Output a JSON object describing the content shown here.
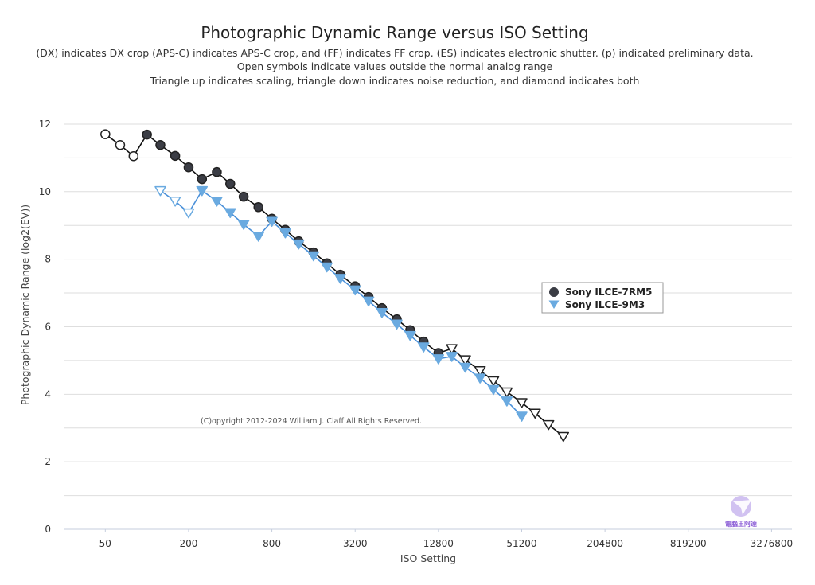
{
  "chart_data": {
    "type": "line",
    "title": "Photographic Dynamic Range versus ISO Setting",
    "subtitle": [
      "(DX) indicates DX crop (APS-C) indicates APS-C crop, and (FF) indicates FF crop. (ES) indicates electronic shutter. (p) indicated preliminary data.",
      "Open symbols indicate values outside the normal analog range",
      "Triangle up indicates scaling, triangle down indicates noise reduction, and diamond indicates both"
    ],
    "xlabel": "ISO Setting",
    "ylabel": "Photographic Dynamic Range (log2(EV))",
    "x_scale": "log2",
    "xlim": [
      25,
      4600000
    ],
    "ylim": [
      0,
      12.8
    ],
    "x_ticks": [
      "50",
      "200",
      "800",
      "3200",
      "12800",
      "51200",
      "204800",
      "819200",
      "3276800"
    ],
    "x_tick_values": [
      50,
      200,
      800,
      3200,
      12800,
      51200,
      204800,
      819200,
      3276800
    ],
    "y_ticks": [
      0,
      2,
      4,
      6,
      8,
      10,
      12
    ],
    "grid": true,
    "legend_position": "right",
    "copyright": "(C)opyright 2012-2024 William J. Claff All Rights Reserved.",
    "series": [
      {
        "name": "Sony ILCE-7RM5",
        "color": "#3b3d45",
        "points": [
          {
            "x": 50,
            "y": 11.7,
            "m": "circle-open"
          },
          {
            "x": 64,
            "y": 11.38,
            "m": "circle-open"
          },
          {
            "x": 80,
            "y": 11.05,
            "m": "circle-open"
          },
          {
            "x": 100,
            "y": 11.69,
            "m": "circle"
          },
          {
            "x": 125,
            "y": 11.38,
            "m": "circle"
          },
          {
            "x": 160,
            "y": 11.06,
            "m": "circle"
          },
          {
            "x": 200,
            "y": 10.72,
            "m": "circle"
          },
          {
            "x": 250,
            "y": 10.37,
            "m": "circle"
          },
          {
            "x": 320,
            "y": 10.58,
            "m": "circle"
          },
          {
            "x": 400,
            "y": 10.23,
            "m": "circle"
          },
          {
            "x": 500,
            "y": 9.85,
            "m": "circle"
          },
          {
            "x": 640,
            "y": 9.54,
            "m": "circle"
          },
          {
            "x": 800,
            "y": 9.2,
            "m": "circle"
          },
          {
            "x": 1000,
            "y": 8.87,
            "m": "circle"
          },
          {
            "x": 1250,
            "y": 8.53,
            "m": "circle"
          },
          {
            "x": 1600,
            "y": 8.2,
            "m": "circle"
          },
          {
            "x": 2000,
            "y": 7.88,
            "m": "circle"
          },
          {
            "x": 2500,
            "y": 7.54,
            "m": "circle"
          },
          {
            "x": 3200,
            "y": 7.2,
            "m": "circle"
          },
          {
            "x": 4000,
            "y": 6.88,
            "m": "circle"
          },
          {
            "x": 5000,
            "y": 6.55,
            "m": "circle"
          },
          {
            "x": 6400,
            "y": 6.22,
            "m": "circle"
          },
          {
            "x": 8000,
            "y": 5.9,
            "m": "circle"
          },
          {
            "x": 10000,
            "y": 5.56,
            "m": "circle"
          },
          {
            "x": 12800,
            "y": 5.22,
            "m": "circle"
          },
          {
            "x": 16000,
            "y": 5.35,
            "m": "tri-down-open"
          },
          {
            "x": 20000,
            "y": 5.02,
            "m": "tri-down-open"
          },
          {
            "x": 25600,
            "y": 4.7,
            "m": "tri-down-open"
          },
          {
            "x": 32000,
            "y": 4.4,
            "m": "tri-down-open"
          },
          {
            "x": 40000,
            "y": 4.07,
            "m": "tri-down-open"
          },
          {
            "x": 51200,
            "y": 3.75,
            "m": "tri-down-open"
          },
          {
            "x": 64000,
            "y": 3.44,
            "m": "tri-down-open"
          },
          {
            "x": 80000,
            "y": 3.1,
            "m": "tri-down-open"
          },
          {
            "x": 102400,
            "y": 2.75,
            "m": "tri-down-open"
          }
        ]
      },
      {
        "name": "Sony ILCE-9M3",
        "color": "#6aaae0",
        "points": [
          {
            "x": 125,
            "y": 10.03,
            "m": "tri-down-open"
          },
          {
            "x": 160,
            "y": 9.72,
            "m": "tri-down-open"
          },
          {
            "x": 200,
            "y": 9.37,
            "m": "tri-down-open"
          },
          {
            "x": 250,
            "y": 10.03,
            "m": "tri-down"
          },
          {
            "x": 320,
            "y": 9.72,
            "m": "tri-down"
          },
          {
            "x": 400,
            "y": 9.38,
            "m": "tri-down"
          },
          {
            "x": 500,
            "y": 9.03,
            "m": "tri-down"
          },
          {
            "x": 640,
            "y": 8.68,
            "m": "tri-down"
          },
          {
            "x": 800,
            "y": 9.12,
            "m": "tri-down"
          },
          {
            "x": 1000,
            "y": 8.78,
            "m": "tri-down"
          },
          {
            "x": 1250,
            "y": 8.45,
            "m": "tri-down"
          },
          {
            "x": 1600,
            "y": 8.1,
            "m": "tri-down"
          },
          {
            "x": 2000,
            "y": 7.77,
            "m": "tri-down"
          },
          {
            "x": 2500,
            "y": 7.43,
            "m": "tri-down"
          },
          {
            "x": 3200,
            "y": 7.09,
            "m": "tri-down"
          },
          {
            "x": 4000,
            "y": 6.76,
            "m": "tri-down"
          },
          {
            "x": 5000,
            "y": 6.42,
            "m": "tri-down"
          },
          {
            "x": 6400,
            "y": 6.08,
            "m": "tri-down"
          },
          {
            "x": 8000,
            "y": 5.74,
            "m": "tri-down"
          },
          {
            "x": 10000,
            "y": 5.4,
            "m": "tri-down"
          },
          {
            "x": 12800,
            "y": 5.05,
            "m": "tri-down"
          },
          {
            "x": 16000,
            "y": 5.12,
            "m": "tri-down"
          },
          {
            "x": 20000,
            "y": 4.8,
            "m": "tri-down"
          },
          {
            "x": 25600,
            "y": 4.48,
            "m": "tri-down"
          },
          {
            "x": 32000,
            "y": 4.14,
            "m": "tri-down"
          },
          {
            "x": 40000,
            "y": 3.8,
            "m": "tri-down"
          },
          {
            "x": 51200,
            "y": 3.35,
            "m": "tri-down"
          }
        ]
      }
    ]
  },
  "watermark": {
    "text": "電腦王阿達",
    "icon": "paper-plane-logo-icon",
    "color": "#8a5cd6"
  }
}
